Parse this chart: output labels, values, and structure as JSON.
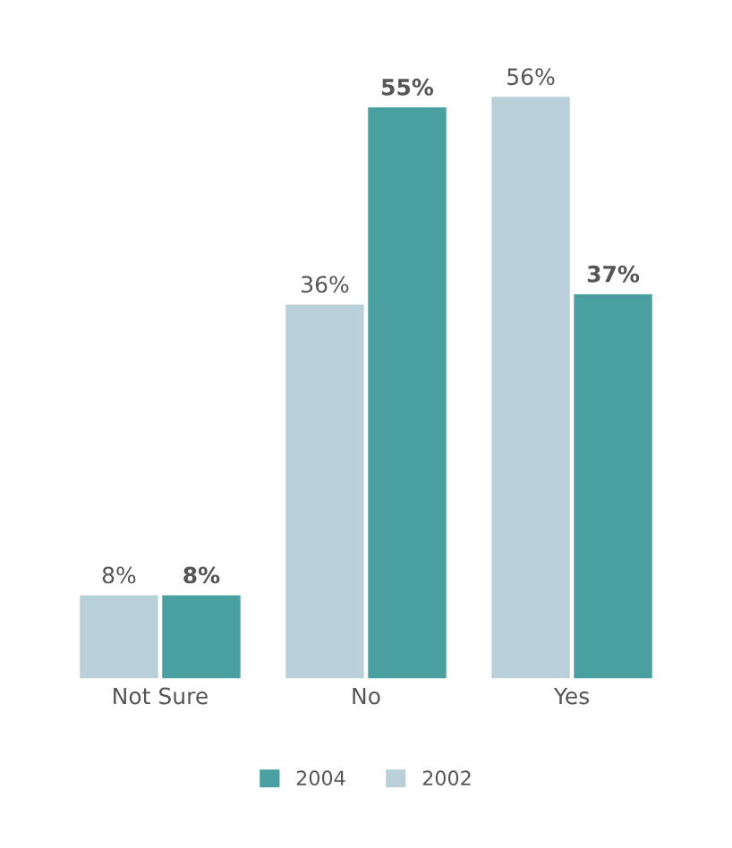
{
  "chart_data": {
    "type": "bar",
    "categories": [
      "Not Sure",
      "No",
      "Yes"
    ],
    "series": [
      {
        "name": "2004",
        "color": "#4a9fa0",
        "values": [
          8,
          55,
          37
        ],
        "value_labels": [
          "8%",
          "55%",
          "37%"
        ]
      },
      {
        "name": "2002",
        "color": "#b9cfda",
        "values": [
          8,
          36,
          56
        ],
        "value_labels": [
          "8%",
          "36%",
          "56%"
        ]
      }
    ],
    "legend": "bottom",
    "grid": false,
    "tick_labels": "x"
  }
}
